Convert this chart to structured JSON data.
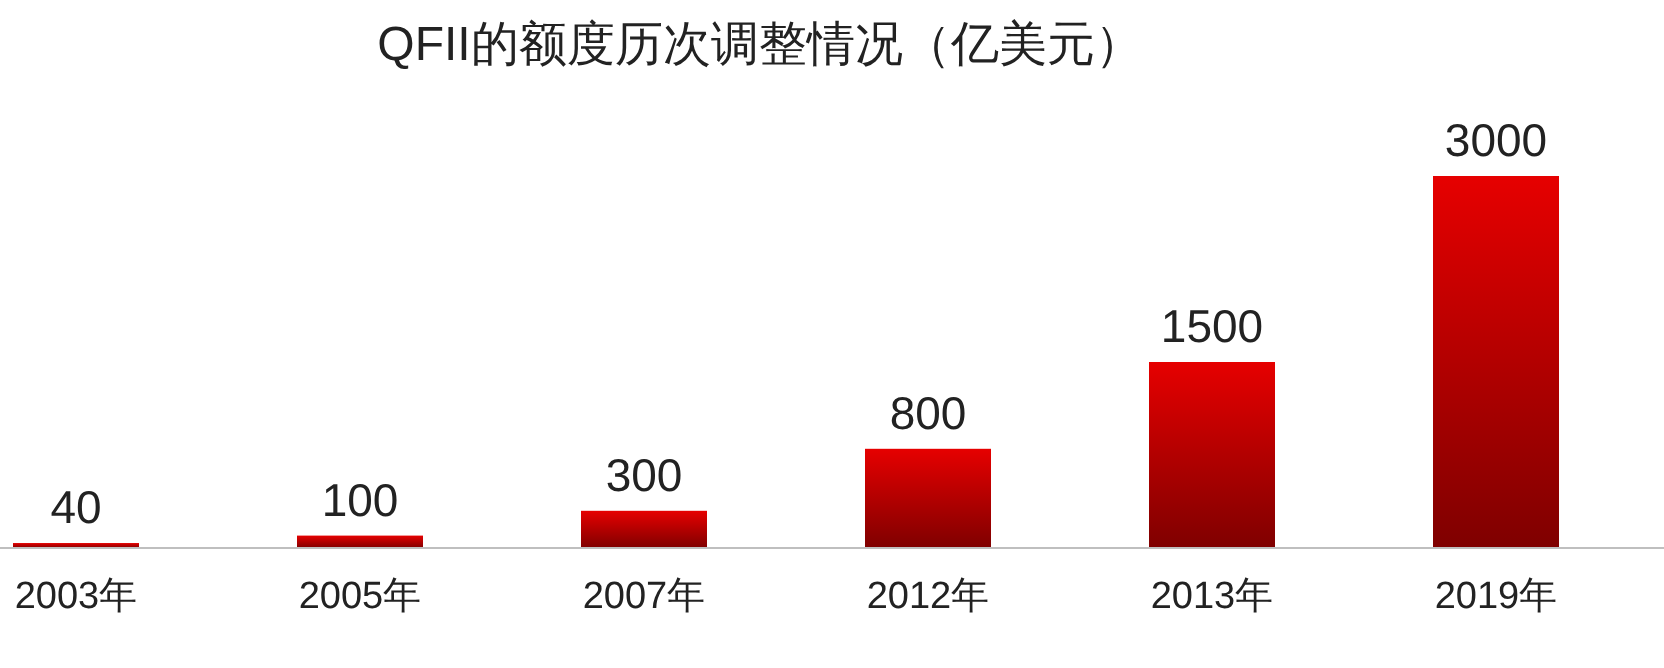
{
  "chart_data": {
    "type": "bar",
    "title": "QFII的额度历次调整情况（亿美元）",
    "categories": [
      "2003年",
      "2005年",
      "2007年",
      "2012年",
      "2013年",
      "2019年"
    ],
    "values": [
      40,
      100,
      300,
      800,
      1500,
      3000
    ],
    "color": "#e60000",
    "data_labels": true
  }
}
